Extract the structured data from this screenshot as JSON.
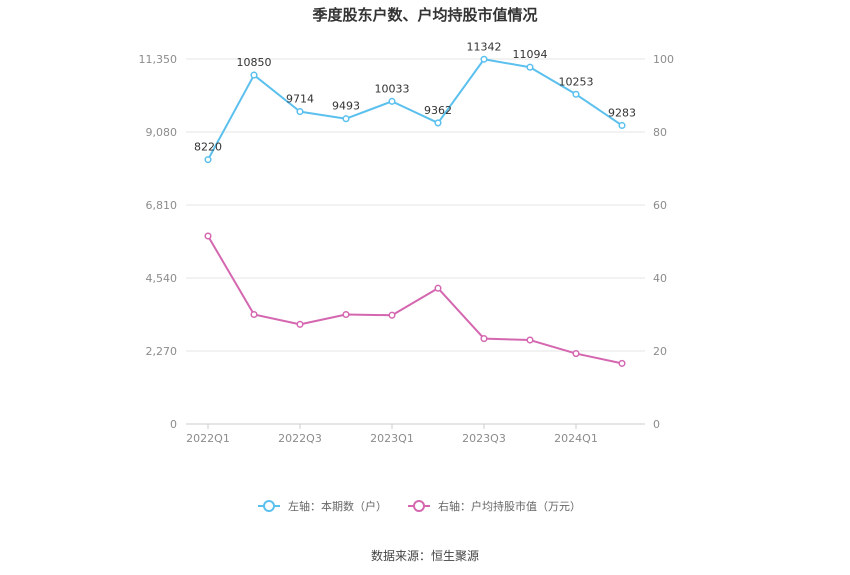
{
  "chart_data": {
    "type": "line",
    "title": "季度股东户数、户均持股市值情况",
    "categories": [
      "2022Q1",
      "2022Q2",
      "2022Q3",
      "2022Q4",
      "2023Q1",
      "2023Q2",
      "2023Q3",
      "2023Q4",
      "2024Q1",
      "2024Q2"
    ],
    "x_tick_labels": [
      "2022Q1",
      "2022Q3",
      "2023Q1",
      "2023Q3",
      "2024Q1"
    ],
    "left_axis": {
      "ylim": [
        0,
        11350
      ],
      "ticks": [
        "0",
        "2,270",
        "4,540",
        "6,810",
        "9,080",
        "11,350"
      ]
    },
    "right_axis": {
      "ylim": [
        0,
        100
      ],
      "ticks": [
        "0",
        "20",
        "40",
        "60",
        "80",
        "100"
      ]
    },
    "series": [
      {
        "name": "左轴：本期数（户）",
        "axis": "left",
        "color": "#5bc0ee",
        "values": [
          8220,
          10850,
          9714,
          9493,
          10033,
          9362,
          11342,
          11094,
          10253,
          9283
        ],
        "labels": [
          "8220",
          "10850",
          "9714",
          "9493",
          "10033",
          "9362",
          "11342",
          "11094",
          "10253",
          "9283"
        ]
      },
      {
        "name": "右轴：户均持股市值（万元）",
        "axis": "right",
        "color": "#d467b0",
        "values": [
          51.5,
          30.0,
          27.3,
          30.0,
          29.8,
          37.2,
          23.4,
          23.0,
          19.3,
          16.6
        ]
      }
    ],
    "grid": true,
    "legend_position": "bottom-center"
  },
  "source": "数据来源：恒生聚源"
}
